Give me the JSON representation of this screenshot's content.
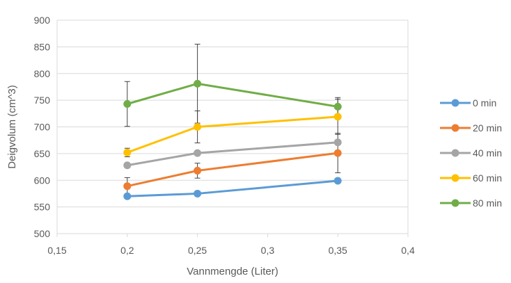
{
  "chart_data": {
    "type": "line",
    "title": "",
    "xlabel": "Vannmengde (Liter)",
    "ylabel": "Deigvolum (cm^3)",
    "xlim": [
      0.15,
      0.4
    ],
    "ylim": [
      500,
      900
    ],
    "x_ticks": [
      "0,15",
      "0,2",
      "0,25",
      "0,3",
      "0,35",
      "0,4"
    ],
    "x_tick_values": [
      0.15,
      0.2,
      0.25,
      0.3,
      0.35,
      0.4
    ],
    "y_ticks": [
      "500",
      "550",
      "600",
      "650",
      "700",
      "750",
      "800",
      "850",
      "900"
    ],
    "y_tick_values": [
      500,
      550,
      600,
      650,
      700,
      750,
      800,
      850,
      900
    ],
    "grid": "horizontal",
    "legend_position": "right",
    "x": [
      0.2,
      0.25,
      0.35
    ],
    "series": [
      {
        "name": "0 min",
        "color": "#5B9BD5",
        "values": [
          570,
          575,
          599
        ],
        "error": [
          null,
          null,
          null
        ]
      },
      {
        "name": "20 min",
        "color": "#ED7D31",
        "values": [
          589,
          618,
          651
        ],
        "error": [
          16,
          14,
          37
        ]
      },
      {
        "name": "40 min",
        "color": "#A5A5A5",
        "values": [
          628,
          651,
          671
        ],
        "error": [
          null,
          null,
          null
        ]
      },
      {
        "name": "60 min",
        "color": "#FFC000",
        "values": [
          652,
          700,
          719
        ],
        "error": [
          8,
          30,
          33
        ]
      },
      {
        "name": "80 min",
        "color": "#70AD47",
        "values": [
          743,
          781,
          738
        ],
        "error": [
          42,
          74,
          17
        ]
      }
    ]
  }
}
